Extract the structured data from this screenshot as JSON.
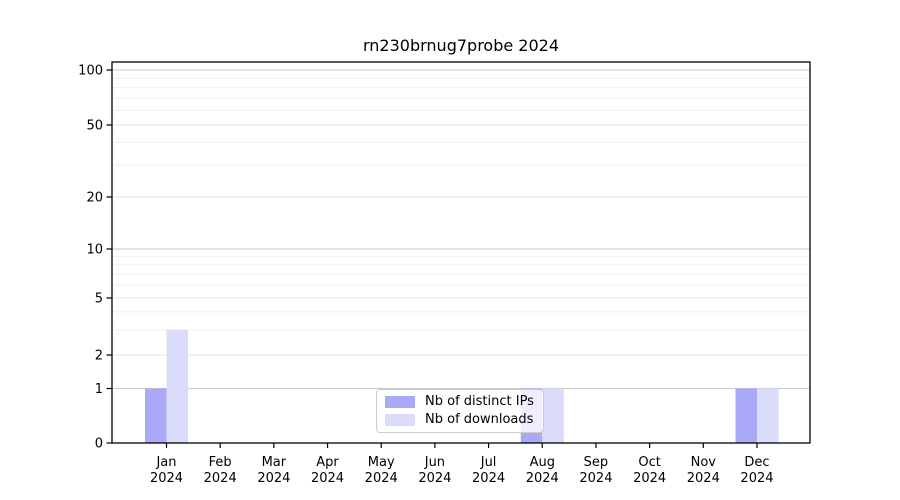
{
  "chart_data": {
    "type": "bar",
    "title": "rn230brnug7probe 2024",
    "x_tick_labels": [
      {
        "month": "Jan",
        "year": "2024"
      },
      {
        "month": "Feb",
        "year": "2024"
      },
      {
        "month": "Mar",
        "year": "2024"
      },
      {
        "month": "Apr",
        "year": "2024"
      },
      {
        "month": "May",
        "year": "2024"
      },
      {
        "month": "Jun",
        "year": "2024"
      },
      {
        "month": "Jul",
        "year": "2024"
      },
      {
        "month": "Aug",
        "year": "2024"
      },
      {
        "month": "Sep",
        "year": "2024"
      },
      {
        "month": "Oct",
        "year": "2024"
      },
      {
        "month": "Nov",
        "year": "2024"
      },
      {
        "month": "Dec",
        "year": "2024"
      }
    ],
    "y_axis": {
      "scale": "log above 1, linear 0-1",
      "ticks": [
        {
          "label": "0",
          "value": 0
        },
        {
          "label": "1",
          "value": 1
        },
        {
          "label": "2",
          "value": 2
        },
        {
          "label": "5",
          "value": 5
        },
        {
          "label": "10",
          "value": 10
        },
        {
          "label": "20",
          "value": 20
        },
        {
          "label": "50",
          "value": 50
        },
        {
          "label": "100",
          "value": 100
        }
      ],
      "minor_gridline_values": [
        3,
        4,
        6,
        7,
        8,
        9,
        30,
        40,
        60,
        70,
        80,
        90
      ]
    },
    "series": [
      {
        "name": "Nb of distinct IPs",
        "color": "#a9a9f7",
        "values": [
          1,
          0,
          0,
          0,
          0,
          0,
          0,
          1,
          0,
          0,
          0,
          1
        ]
      },
      {
        "name": "Nb of downloads",
        "color": "#dbdbfa",
        "values": [
          3,
          0,
          0,
          0,
          0,
          0,
          0,
          1,
          0,
          0,
          0,
          1
        ]
      }
    ],
    "legend": {
      "position": "inside-bottom-center"
    },
    "grid": "horizontal",
    "colors": {
      "axis": "#000000",
      "gridline_decade": "#c8c8c8",
      "gridline_major": "#e4e4e4",
      "gridline_minor": "#efefef",
      "background": "#ffffff"
    }
  }
}
